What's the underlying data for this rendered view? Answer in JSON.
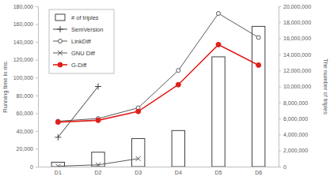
{
  "chart_data": {
    "type": "bar",
    "y_label": "Running time in ms.",
    "y2_label": "The number of triples",
    "categories": [
      "D1",
      "D2",
      "D3",
      "D4",
      "D5",
      "D6"
    ],
    "legend": "top-left",
    "grid": false,
    "ylim": [
      0,
      180000
    ],
    "yticks": [
      0,
      {
        "value": 20000,
        "label": "20,000"
      },
      {
        "value": 40000,
        "label": "40,000"
      },
      {
        "value": 60000,
        "label": "60,000"
      },
      {
        "value": 80000,
        "label": "80,000"
      },
      {
        "value": 100000,
        "label": "100,000"
      },
      {
        "value": 120000,
        "label": "120,000"
      },
      {
        "value": 140000,
        "label": "140,000"
      },
      {
        "value": 160000,
        "label": "160,000"
      },
      {
        "value": 180000,
        "label": "180,000"
      }
    ],
    "y2lim": [
      0,
      20000000
    ],
    "y2ticks": [
      0,
      {
        "value": 2000000,
        "label": "2,000,000"
      },
      {
        "value": 4000000,
        "label": "4,000,000"
      },
      {
        "value": 6000000,
        "label": "6,000,000"
      },
      {
        "value": 8000000,
        "label": "8,000,000"
      },
      {
        "value": 10000000,
        "label": "10,000,000"
      },
      {
        "value": 12000000,
        "label": "12,000,000"
      },
      {
        "value": 14000000,
        "label": "14,000,000"
      },
      {
        "value": 16000000,
        "label": "16,000,000"
      },
      {
        "value": 18000000,
        "label": "18,000,000"
      },
      {
        "value": 20000000,
        "label": "20,000,000"
      }
    ],
    "series": [
      {
        "name": "# of triples",
        "type": "bar",
        "axis": "y2",
        "color": "#ffffff",
        "values": [
          550000,
          1800000,
          3500000,
          4500000,
          13700000,
          17500000
        ]
      },
      {
        "name": "SemVersion",
        "type": "line",
        "marker": "plus",
        "color": "#404040",
        "values": [
          33000,
          90000,
          null,
          null,
          null,
          null
        ]
      },
      {
        "name": "LinkDiff",
        "type": "line",
        "marker": "open_circle",
        "color": "#595959",
        "values": [
          51000,
          54000,
          66000,
          108000,
          172000,
          145000
        ]
      },
      {
        "name": "GNU Diff",
        "type": "line",
        "marker": "x",
        "color": "#595959",
        "values": [
          500,
          2000,
          9000,
          null,
          null,
          null
        ]
      },
      {
        "name": "G-Diff",
        "type": "line",
        "marker": "circle",
        "color": "#e0201b",
        "values": [
          50000,
          52000,
          62000,
          92000,
          137000,
          114000
        ]
      }
    ]
  }
}
